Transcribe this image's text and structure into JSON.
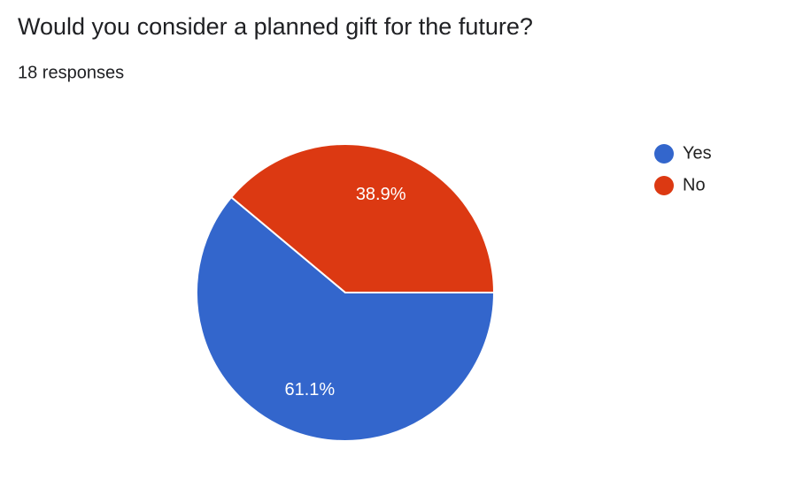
{
  "chart_data": {
    "type": "pie",
    "title": "Would you consider a planned gift for the future?",
    "subtitle": "18 responses",
    "categories": [
      "Yes",
      "No"
    ],
    "values": [
      61.1,
      38.9
    ],
    "value_labels": [
      "61.1%",
      "38.9%"
    ],
    "colors": [
      "#3366cc",
      "#dc3912"
    ],
    "legend": "right"
  }
}
